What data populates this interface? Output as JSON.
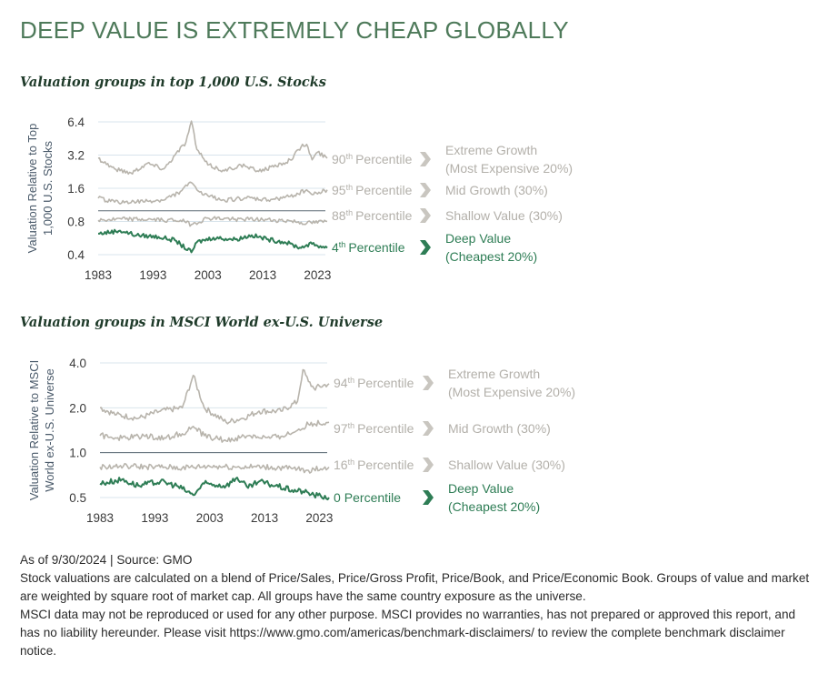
{
  "page": {
    "title": "DEEP VALUE IS EXTREMELY CHEAP GLOBALLY"
  },
  "colors": {
    "green": "#2e7d55",
    "grey_line": "#b8b4ac",
    "label_grey": "#b3b0aa",
    "axis_text": "#3a3a3a",
    "title_green": "#4e7a5a"
  },
  "chart_data": [
    {
      "type": "line",
      "title": "Valuation groups in top 1,000 U.S. Stocks",
      "ylabel": "Valuation Relative to Top 1,000 U.S. Stocks",
      "ylabel_lines": [
        "Valuation Relative to Top",
        "1,000 U.S. Stocks"
      ],
      "y_scale": "log",
      "y_ticks": [
        "6.4",
        "3.2",
        "1.6",
        "0.8",
        "0.4"
      ],
      "x_ticks": [
        "1983",
        "1993",
        "2003",
        "2013",
        "2023"
      ],
      "xlim": [
        1983,
        2024.75
      ],
      "ylim": [
        0.4,
        6.4
      ],
      "reference_line": 1.0,
      "series": [
        {
          "name": "Extreme Growth (Most Expensive 20%)",
          "label_lines": [
            "Extreme Growth",
            "(Most Expensive 20%)"
          ],
          "percentile_num": "90",
          "percentile_suffix": "th",
          "percentile_word": "Percentile",
          "highlight": false,
          "values": [
            [
              1983,
              3.0
            ],
            [
              1986,
              2.4
            ],
            [
              1989,
              2.2
            ],
            [
              1992,
              2.7
            ],
            [
              1995,
              2.4
            ],
            [
              1997,
              3.2
            ],
            [
              1999,
              4.2
            ],
            [
              2000,
              6.5
            ],
            [
              2001,
              3.6
            ],
            [
              2003,
              2.6
            ],
            [
              2006,
              2.3
            ],
            [
              2009,
              2.6
            ],
            [
              2012,
              2.3
            ],
            [
              2015,
              2.5
            ],
            [
              2018,
              2.9
            ],
            [
              2020,
              3.8
            ],
            [
              2021,
              4.0
            ],
            [
              2022,
              2.9
            ],
            [
              2023,
              3.4
            ],
            [
              2024.75,
              3.0
            ]
          ]
        },
        {
          "name": "Mid Growth (30%)",
          "label_lines": [
            "Mid Growth (30%)"
          ],
          "percentile_num": "95",
          "percentile_suffix": "th",
          "percentile_word": "Percentile",
          "highlight": false,
          "values": [
            [
              1983,
              1.3
            ],
            [
              1986,
              1.2
            ],
            [
              1990,
              1.2
            ],
            [
              1995,
              1.25
            ],
            [
              1998,
              1.5
            ],
            [
              2000,
              1.8
            ],
            [
              2002,
              1.4
            ],
            [
              2006,
              1.25
            ],
            [
              2010,
              1.3
            ],
            [
              2014,
              1.25
            ],
            [
              2018,
              1.35
            ],
            [
              2021,
              1.55
            ],
            [
              2022,
              1.4
            ],
            [
              2024.75,
              1.55
            ]
          ]
        },
        {
          "name": "Shallow Value (30%)",
          "label_lines": [
            "Shallow Value (30%)"
          ],
          "percentile_num": "88",
          "percentile_suffix": "th",
          "percentile_word": "Percentile",
          "highlight": false,
          "values": [
            [
              1983,
              0.82
            ],
            [
              1988,
              0.84
            ],
            [
              1993,
              0.83
            ],
            [
              1998,
              0.82
            ],
            [
              2000,
              0.75
            ],
            [
              2003,
              0.86
            ],
            [
              2008,
              0.84
            ],
            [
              2013,
              0.83
            ],
            [
              2018,
              0.81
            ],
            [
              2021,
              0.77
            ],
            [
              2024.75,
              0.8
            ]
          ]
        },
        {
          "name": "Deep Value (Cheapest 20%)",
          "label_lines": [
            "Deep Value",
            "(Cheapest 20%)"
          ],
          "percentile_num": "4",
          "percentile_suffix": "th",
          "percentile_word": "Percentile",
          "highlight": true,
          "values": [
            [
              1983,
              0.62
            ],
            [
              1987,
              0.66
            ],
            [
              1990,
              0.6
            ],
            [
              1994,
              0.58
            ],
            [
              1997,
              0.54
            ],
            [
              2000,
              0.42
            ],
            [
              2001,
              0.52
            ],
            [
              2004,
              0.57
            ],
            [
              2008,
              0.55
            ],
            [
              2011,
              0.6
            ],
            [
              2014,
              0.55
            ],
            [
              2017,
              0.52
            ],
            [
              2020,
              0.46
            ],
            [
              2021,
              0.49
            ],
            [
              2022,
              0.5
            ],
            [
              2024.75,
              0.46
            ]
          ]
        }
      ]
    },
    {
      "type": "line",
      "title": "Valuation groups in MSCI World ex-U.S. Universe",
      "ylabel": "Valuation Relative to MSCI World ex-U.S. Universe",
      "ylabel_lines": [
        "Valuation Relative to MSCI",
        "World ex-U.S. Universe"
      ],
      "y_scale": "log",
      "y_ticks": [
        "4.0",
        "2.0",
        "1.0",
        "0.5"
      ],
      "x_ticks": [
        "1983",
        "1993",
        "2003",
        "2013",
        "2023"
      ],
      "xlim": [
        1983,
        2024.75
      ],
      "ylim": [
        0.5,
        4.0
      ],
      "reference_line": 1.0,
      "series": [
        {
          "name": "Extreme Growth (Most Expensive 20%)",
          "label_lines": [
            "Extreme Growth",
            "(Most Expensive 20%)"
          ],
          "percentile_num": "94",
          "percentile_suffix": "th",
          "percentile_word": "Percentile",
          "highlight": false,
          "values": [
            [
              1983,
              2.0
            ],
            [
              1986,
              1.8
            ],
            [
              1990,
              1.7
            ],
            [
              1994,
              1.9
            ],
            [
              1998,
              2.0
            ],
            [
              2000,
              3.3
            ],
            [
              2002,
              2.0
            ],
            [
              2006,
              1.6
            ],
            [
              2009,
              1.7
            ],
            [
              2012,
              1.9
            ],
            [
              2016,
              1.9
            ],
            [
              2019,
              2.2
            ],
            [
              2020,
              3.6
            ],
            [
              2021,
              3.0
            ],
            [
              2022,
              2.7
            ],
            [
              2024.75,
              2.9
            ]
          ]
        },
        {
          "name": "Mid Growth (30%)",
          "label_lines": [
            "Mid Growth (30%)"
          ],
          "percentile_num": "97",
          "percentile_suffix": "th",
          "percentile_word": "Percentile",
          "highlight": false,
          "values": [
            [
              1983,
              1.3
            ],
            [
              1987,
              1.25
            ],
            [
              1991,
              1.3
            ],
            [
              1995,
              1.25
            ],
            [
              1999,
              1.4
            ],
            [
              2000,
              1.5
            ],
            [
              2002,
              1.3
            ],
            [
              2006,
              1.2
            ],
            [
              2010,
              1.3
            ],
            [
              2014,
              1.25
            ],
            [
              2018,
              1.35
            ],
            [
              2021,
              1.55
            ],
            [
              2024.75,
              1.6
            ]
          ]
        },
        {
          "name": "Shallow Value (30%)",
          "label_lines": [
            "Shallow Value (30%)"
          ],
          "percentile_num": "16",
          "percentile_suffix": "th",
          "percentile_word": "Percentile",
          "highlight": false,
          "values": [
            [
              1983,
              0.8
            ],
            [
              1988,
              0.81
            ],
            [
              1993,
              0.8
            ],
            [
              1998,
              0.79
            ],
            [
              2003,
              0.81
            ],
            [
              2008,
              0.8
            ],
            [
              2013,
              0.8
            ],
            [
              2018,
              0.78
            ],
            [
              2021,
              0.76
            ],
            [
              2024.75,
              0.8
            ]
          ]
        },
        {
          "name": "Deep Value (Cheapest 20%)",
          "label_lines": [
            "Deep Value",
            "(Cheapest 20%)"
          ],
          "percentile_num": "0",
          "percentile_suffix": "",
          "percentile_word": "Percentile",
          "highlight": true,
          "values": [
            [
              1983,
              0.62
            ],
            [
              1987,
              0.66
            ],
            [
              1990,
              0.6
            ],
            [
              1994,
              0.64
            ],
            [
              1997,
              0.6
            ],
            [
              2000,
              0.52
            ],
            [
              2002,
              0.62
            ],
            [
              2006,
              0.6
            ],
            [
              2008,
              0.68
            ],
            [
              2010,
              0.58
            ],
            [
              2012,
              0.64
            ],
            [
              2015,
              0.6
            ],
            [
              2018,
              0.56
            ],
            [
              2020,
              0.55
            ],
            [
              2022,
              0.52
            ],
            [
              2024.75,
              0.5
            ]
          ]
        }
      ]
    }
  ],
  "notes": {
    "as_of": "As of 9/30/2024 | Source: GMO",
    "methodology": "Stock valuations are calculated on a blend of Price/Sales, Price/Gross Profit, Price/Book, and Price/Economic Book. Groups of value and market are weighted by square root of market cap. All groups have the same country exposure as the universe.",
    "disclaimer": "MSCI data may not be reproduced or used for any other purpose. MSCI provides no warranties, has not prepared or approved this report, and has no liability hereunder. Please visit https://www.gmo.com/americas/benchmark-disclaimers/ to review the complete benchmark disclaimer notice."
  }
}
